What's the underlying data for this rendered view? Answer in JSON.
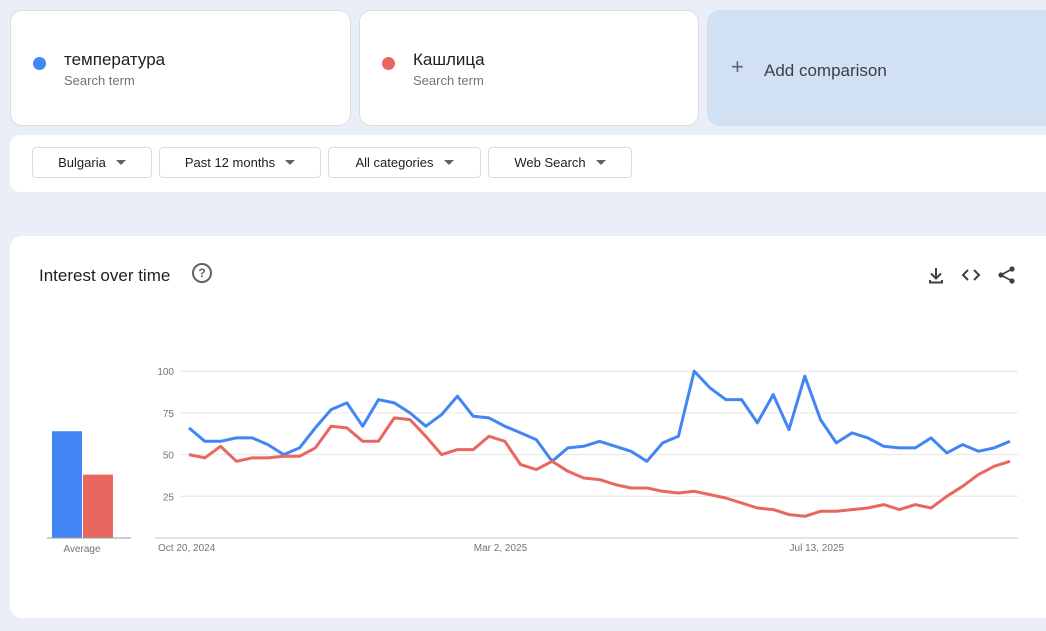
{
  "terms": [
    {
      "name": "температура",
      "subtitle": "Search term",
      "color": "#4285f4"
    },
    {
      "name": "Кашлица",
      "subtitle": "Search term",
      "color": "#e8675f"
    }
  ],
  "add_comparison": {
    "label": "Add comparison"
  },
  "filters": {
    "region": "Bulgaria",
    "period": "Past 12 months",
    "category": "All categories",
    "search_type": "Web Search"
  },
  "chart_section": {
    "title": "Interest over time"
  },
  "chart_data": {
    "type": "line",
    "ylim": [
      0,
      100
    ],
    "yticks": [
      "100",
      "75",
      "50",
      "25"
    ],
    "ytick_values": [
      100,
      75,
      50,
      25
    ],
    "x_tick_labels": [
      "Oct 20, 2024",
      "Mar 2, 2025",
      "Jul 13, 2025"
    ],
    "x_tick_index": [
      0,
      20,
      40
    ],
    "series": [
      {
        "name": "температура",
        "color": "#4285f4",
        "values": [
          66,
          58,
          58,
          60,
          60,
          56,
          50,
          54,
          66,
          77,
          81,
          67,
          83,
          81,
          75,
          67,
          74,
          85,
          73,
          72,
          67,
          63,
          59,
          46,
          54,
          55,
          58,
          55,
          52,
          46,
          57,
          61,
          100,
          90,
          83,
          83,
          69,
          86,
          65,
          97,
          71,
          57,
          63,
          60,
          55,
          54,
          54,
          60,
          51,
          56,
          52,
          54,
          58
        ]
      },
      {
        "name": "Кашлица",
        "color": "#e8675f",
        "values": [
          50,
          48,
          55,
          46,
          48,
          48,
          49,
          49,
          54,
          67,
          66,
          58,
          58,
          72,
          71,
          61,
          50,
          53,
          53,
          61,
          58,
          44,
          41,
          46,
          40,
          36,
          35,
          32,
          30,
          30,
          28,
          27,
          28,
          26,
          24,
          21,
          18,
          17,
          14,
          13,
          16,
          16,
          17,
          18,
          20,
          17,
          20,
          18,
          25,
          31,
          38,
          43,
          46
        ]
      }
    ],
    "averages": [
      {
        "name": "температура",
        "value": 64,
        "color": "#4285f4"
      },
      {
        "name": "Кашлица",
        "value": 38,
        "color": "#e8675f"
      }
    ],
    "average_label": "Average"
  }
}
